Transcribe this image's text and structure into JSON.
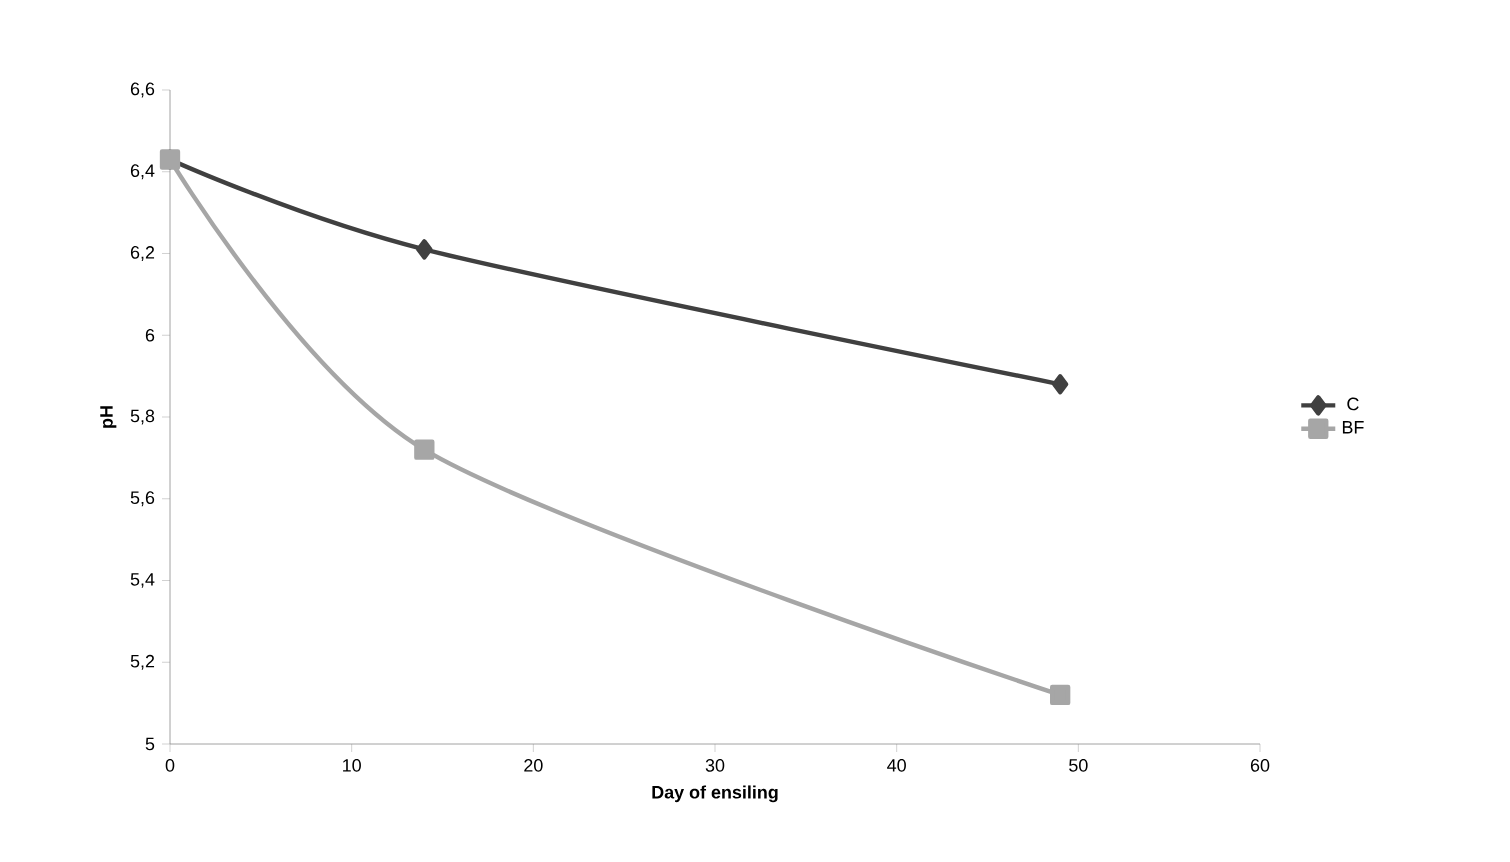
{
  "chart_data": {
    "type": "line",
    "xlabel": "Day of ensiling",
    "ylabel": "pH",
    "xlim": [
      0,
      60
    ],
    "xticks": [
      0,
      10,
      20,
      30,
      40,
      50,
      60
    ],
    "ylim": [
      5,
      6.6
    ],
    "yticks": [
      5,
      {
        "value": 5.2,
        "label": "5,2"
      },
      {
        "value": 5.4,
        "label": "5,4"
      },
      {
        "value": 5.6,
        "label": "5,6"
      },
      {
        "value": 5.8,
        "label": "5,8"
      },
      6,
      {
        "value": 6.2,
        "label": "6,2"
      },
      {
        "value": 6.4,
        "label": "6,4"
      },
      {
        "value": 6.6,
        "label": "6,6"
      }
    ],
    "x": [
      0,
      14,
      49
    ],
    "series": [
      {
        "name": "C",
        "color": "#404040",
        "values": [
          6.43,
          6.21,
          5.88
        ],
        "marker": "diamond"
      },
      {
        "name": "BF",
        "color": "#a6a6a6",
        "values": [
          6.43,
          5.72,
          5.12
        ],
        "marker": "square"
      }
    ],
    "grid": false,
    "legend": "right",
    "line_style": "solid"
  }
}
